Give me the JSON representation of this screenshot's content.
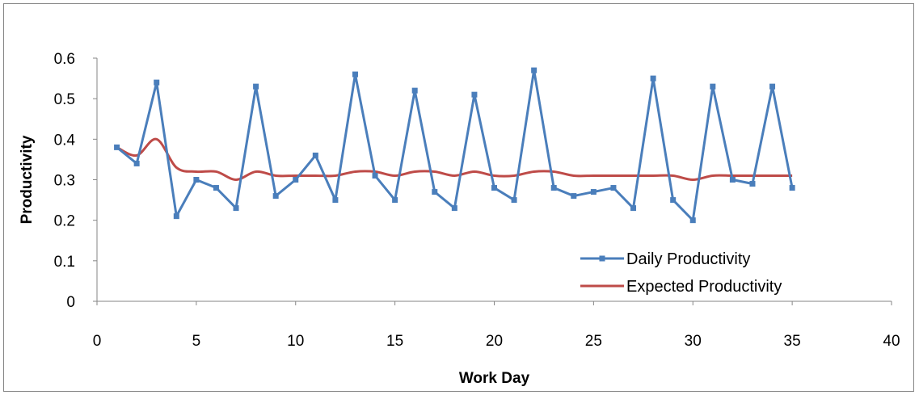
{
  "chart_data": {
    "type": "line",
    "title": "",
    "xlabel": "Work Day",
    "ylabel": "Productivity",
    "xlim": [
      0,
      40
    ],
    "ylim": [
      0,
      0.6
    ],
    "x_ticks": [
      "0",
      "5",
      "10",
      "15",
      "20",
      "25",
      "30",
      "35",
      "40"
    ],
    "y_ticks": [
      "0",
      "0.1",
      "0.2",
      "0.3",
      "0.4",
      "0.5",
      "0.6"
    ],
    "grid": false,
    "legend_position": "right",
    "x": [
      1,
      2,
      3,
      4,
      5,
      6,
      7,
      8,
      9,
      10,
      11,
      12,
      13,
      14,
      15,
      16,
      17,
      18,
      19,
      20,
      21,
      22,
      23,
      24,
      25,
      26,
      27,
      28,
      29,
      30,
      31,
      32,
      33,
      34,
      35
    ],
    "series": [
      {
        "name": "Daily Productivity",
        "color": "#4a7ebb",
        "marker": "square",
        "values": [
          0.38,
          0.34,
          0.54,
          0.21,
          0.3,
          0.28,
          0.23,
          0.53,
          0.26,
          0.3,
          0.36,
          0.25,
          0.56,
          0.31,
          0.25,
          0.52,
          0.27,
          0.23,
          0.51,
          0.28,
          0.25,
          0.57,
          0.28,
          0.26,
          0.27,
          0.28,
          0.23,
          0.55,
          0.25,
          0.2,
          0.53,
          0.3,
          0.29,
          0.53,
          0.28
        ]
      },
      {
        "name": "Expected Productivity",
        "color": "#be4b48",
        "marker": "none",
        "smooth": true,
        "values": [
          0.38,
          0.36,
          0.4,
          0.33,
          0.32,
          0.32,
          0.3,
          0.32,
          0.31,
          0.31,
          0.31,
          0.31,
          0.32,
          0.32,
          0.31,
          0.32,
          0.32,
          0.31,
          0.32,
          0.31,
          0.31,
          0.32,
          0.32,
          0.31,
          0.31,
          0.31,
          0.31,
          0.31,
          0.31,
          0.3,
          0.31,
          0.31,
          0.31,
          0.31,
          0.31
        ]
      }
    ]
  }
}
